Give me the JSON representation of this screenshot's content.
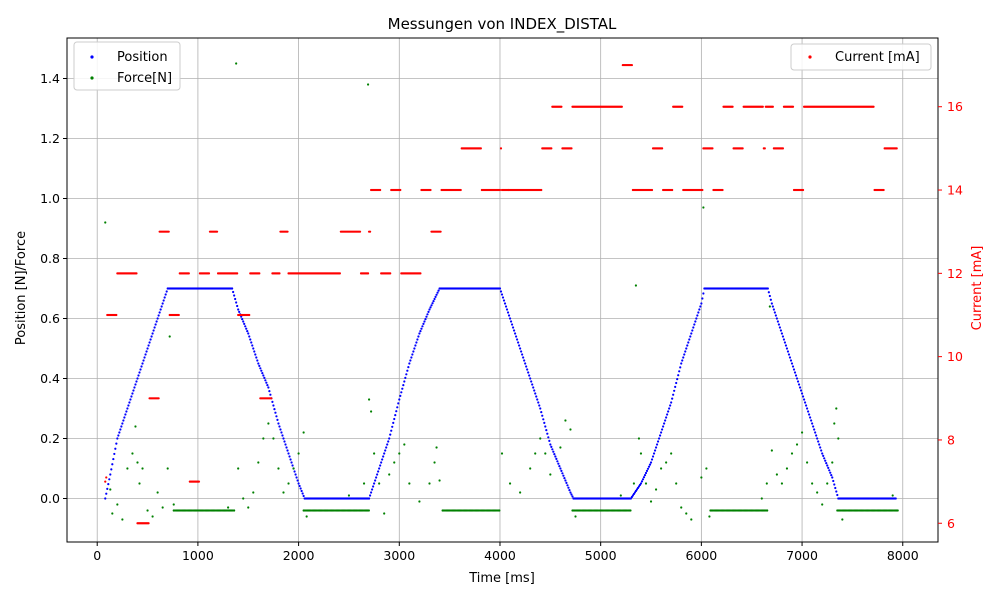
{
  "chart_data": {
    "type": "scatter",
    "title": "Messungen von INDEX_DISTAL",
    "xlabel": "Time [ms]",
    "ylabel": "Position [N]/Force",
    "ylabel_right": "Current [mA]",
    "xlim": [
      -300,
      8350
    ],
    "ylim": [
      -0.145,
      1.535
    ],
    "ylim_right": [
      5.55,
      17.65
    ],
    "xticks": [
      0,
      1000,
      2000,
      3000,
      4000,
      5000,
      6000,
      7000,
      8000
    ],
    "xtick_labels": [
      "0",
      "1000",
      "2000",
      "3000",
      "4000",
      "5000",
      "6000",
      "7000",
      "8000"
    ],
    "yticks": [
      0.0,
      0.2,
      0.4,
      0.6,
      0.8,
      1.0,
      1.2,
      1.4
    ],
    "ytick_labels": [
      "0.0",
      "0.2",
      "0.4",
      "0.6",
      "0.8",
      "1.0",
      "1.2",
      "1.4"
    ],
    "yticks_right": [
      6,
      8,
      10,
      12,
      14,
      16
    ],
    "ytick_labels_right": [
      "6",
      "8",
      "10",
      "12",
      "14",
      "16"
    ],
    "grid": true,
    "legend_left_placement": "upper-left",
    "legend_right_placement": "upper-right",
    "series": [
      {
        "name": "Position",
        "color": "#0000ff",
        "axis": "left",
        "points": [
          [
            80,
            0
          ],
          [
            130,
            0.08
          ],
          [
            200,
            0.2
          ],
          [
            300,
            0.3
          ],
          [
            400,
            0.4
          ],
          [
            500,
            0.5
          ],
          [
            600,
            0.6
          ],
          [
            700,
            0.7
          ],
          [
            1000,
            0.7
          ],
          [
            1340,
            0.7
          ],
          [
            1400,
            0.63
          ],
          [
            1500,
            0.55
          ],
          [
            1600,
            0.45
          ],
          [
            1700,
            0.37
          ],
          [
            1800,
            0.25
          ],
          [
            1900,
            0.15
          ],
          [
            2000,
            0.05
          ],
          [
            2060,
            0
          ],
          [
            2700,
            0
          ],
          [
            2800,
            0.1
          ],
          [
            2900,
            0.2
          ],
          [
            3000,
            0.33
          ],
          [
            3100,
            0.45
          ],
          [
            3200,
            0.55
          ],
          [
            3300,
            0.63
          ],
          [
            3400,
            0.7
          ],
          [
            4000,
            0.7
          ],
          [
            4100,
            0.6
          ],
          [
            4200,
            0.5
          ],
          [
            4300,
            0.4
          ],
          [
            4400,
            0.3
          ],
          [
            4500,
            0.18
          ],
          [
            4600,
            0.1
          ],
          [
            4700,
            0.02
          ],
          [
            4730,
            0
          ],
          [
            5300,
            0
          ],
          [
            5400,
            0.05
          ],
          [
            5500,
            0.12
          ],
          [
            5600,
            0.22
          ],
          [
            5700,
            0.32
          ],
          [
            5800,
            0.45
          ],
          [
            5900,
            0.55
          ],
          [
            6000,
            0.65
          ],
          [
            6030,
            0.7
          ],
          [
            6660,
            0.7
          ],
          [
            6700,
            0.65
          ],
          [
            6800,
            0.55
          ],
          [
            6900,
            0.45
          ],
          [
            7000,
            0.35
          ],
          [
            7100,
            0.25
          ],
          [
            7200,
            0.15
          ],
          [
            7300,
            0.07
          ],
          [
            7360,
            0
          ],
          [
            7930,
            0
          ]
        ]
      },
      {
        "name": "Force[N]",
        "color": "#008000",
        "axis": "left",
        "baseline_segments": [
          [
            760,
            1360,
            -0.04
          ],
          [
            2050,
            2700,
            -0.04
          ],
          [
            3430,
            4000,
            -0.04
          ],
          [
            4720,
            5300,
            -0.04
          ],
          [
            6090,
            6660,
            -0.04
          ],
          [
            7350,
            7950,
            -0.04
          ]
        ],
        "points": [
          [
            80,
            0.92
          ],
          [
            130,
            0.03
          ],
          [
            150,
            -0.05
          ],
          [
            200,
            -0.02
          ],
          [
            250,
            -0.07
          ],
          [
            300,
            0.1
          ],
          [
            350,
            0.15
          ],
          [
            380,
            0.24
          ],
          [
            400,
            0.12
          ],
          [
            420,
            0.05
          ],
          [
            450,
            0.1
          ],
          [
            500,
            -0.04
          ],
          [
            550,
            -0.06
          ],
          [
            600,
            0.02
          ],
          [
            650,
            -0.03
          ],
          [
            700,
            0.1
          ],
          [
            720,
            0.54
          ],
          [
            760,
            -0.02
          ],
          [
            1300,
            -0.03
          ],
          [
            1380,
            1.45
          ],
          [
            1400,
            0.1
          ],
          [
            1450,
            0.0
          ],
          [
            1500,
            -0.03
          ],
          [
            1550,
            0.02
          ],
          [
            1600,
            0.12
          ],
          [
            1650,
            0.2
          ],
          [
            1700,
            0.25
          ],
          [
            1750,
            0.2
          ],
          [
            1800,
            0.1
          ],
          [
            1850,
            0.02
          ],
          [
            1900,
            0.05
          ],
          [
            1950,
            0.1
          ],
          [
            2000,
            0.15
          ],
          [
            2050,
            0.22
          ],
          [
            2080,
            -0.06
          ],
          [
            2500,
            0.01
          ],
          [
            2650,
            0.05
          ],
          [
            2690,
            1.38
          ],
          [
            2700,
            0.33
          ],
          [
            2720,
            0.29
          ],
          [
            2750,
            0.15
          ],
          [
            2800,
            0.05
          ],
          [
            2850,
            -0.05
          ],
          [
            2900,
            0.08
          ],
          [
            2950,
            0.12
          ],
          [
            3000,
            0.15
          ],
          [
            3050,
            0.18
          ],
          [
            3100,
            0.05
          ],
          [
            3200,
            -0.01
          ],
          [
            3300,
            0.05
          ],
          [
            3350,
            0.12
          ],
          [
            3370,
            0.17
          ],
          [
            3400,
            0.06
          ],
          [
            4020,
            0.15
          ],
          [
            4100,
            0.05
          ],
          [
            4200,
            0.02
          ],
          [
            4300,
            0.1
          ],
          [
            4350,
            0.15
          ],
          [
            4400,
            0.2
          ],
          [
            4450,
            0.15
          ],
          [
            4500,
            0.08
          ],
          [
            4600,
            0.17
          ],
          [
            4650,
            0.26
          ],
          [
            4700,
            0.23
          ],
          [
            4750,
            -0.06
          ],
          [
            5200,
            0.01
          ],
          [
            5330,
            0.05
          ],
          [
            5350,
            0.71
          ],
          [
            5380,
            0.2
          ],
          [
            5400,
            0.15
          ],
          [
            5450,
            0.05
          ],
          [
            5500,
            -0.01
          ],
          [
            5550,
            0.03
          ],
          [
            5600,
            0.1
          ],
          [
            5650,
            0.12
          ],
          [
            5700,
            0.15
          ],
          [
            5750,
            0.05
          ],
          [
            5800,
            -0.03
          ],
          [
            5850,
            -0.05
          ],
          [
            5900,
            -0.07
          ],
          [
            6000,
            0.07
          ],
          [
            6020,
            0.97
          ],
          [
            6050,
            0.1
          ],
          [
            6080,
            -0.06
          ],
          [
            6600,
            0.0
          ],
          [
            6650,
            0.05
          ],
          [
            6680,
            0.64
          ],
          [
            6700,
            0.16
          ],
          [
            6750,
            0.08
          ],
          [
            6800,
            0.05
          ],
          [
            6850,
            0.1
          ],
          [
            6900,
            0.15
          ],
          [
            6950,
            0.18
          ],
          [
            7000,
            0.22
          ],
          [
            7050,
            0.12
          ],
          [
            7100,
            0.05
          ],
          [
            7150,
            0.02
          ],
          [
            7200,
            -0.02
          ],
          [
            7250,
            0.05
          ],
          [
            7300,
            0.12
          ],
          [
            7320,
            0.25
          ],
          [
            7340,
            0.3
          ],
          [
            7360,
            0.2
          ],
          [
            7400,
            -0.07
          ],
          [
            7900,
            0.01
          ]
        ]
      },
      {
        "name": "Current [mA]",
        "color": "#ff0000",
        "axis": "right",
        "points": [
          [
            80,
            7
          ],
          [
            90,
            7.1
          ],
          [
            100,
            11
          ],
          [
            130,
            11
          ],
          [
            160,
            11
          ],
          [
            190,
            11
          ],
          [
            200,
            12
          ],
          [
            380,
            12
          ],
          [
            400,
            6
          ],
          [
            500,
            6
          ],
          [
            520,
            9
          ],
          [
            600,
            9
          ],
          [
            620,
            13
          ],
          [
            700,
            13
          ],
          [
            720,
            11
          ],
          [
            800,
            11
          ],
          [
            820,
            12
          ],
          [
            900,
            12
          ],
          [
            920,
            7
          ],
          [
            1000,
            7
          ],
          [
            1020,
            12
          ],
          [
            1100,
            12
          ],
          [
            1120,
            13
          ],
          [
            1180,
            13
          ],
          [
            1200,
            12
          ],
          [
            1380,
            12
          ],
          [
            1400,
            11
          ],
          [
            1500,
            11
          ],
          [
            1520,
            12
          ],
          [
            1600,
            12
          ],
          [
            1620,
            9
          ],
          [
            1720,
            9
          ],
          [
            1740,
            12
          ],
          [
            1800,
            12
          ],
          [
            1820,
            13
          ],
          [
            1880,
            13
          ],
          [
            1900,
            12
          ],
          [
            2400,
            12
          ],
          [
            2420,
            13
          ],
          [
            2600,
            13
          ],
          [
            2620,
            12
          ],
          [
            2680,
            12
          ],
          [
            2700,
            13
          ],
          [
            2720,
            14
          ],
          [
            2800,
            14
          ],
          [
            2820,
            12
          ],
          [
            2900,
            12
          ],
          [
            2920,
            14
          ],
          [
            3000,
            14
          ],
          [
            3020,
            12
          ],
          [
            3200,
            12
          ],
          [
            3220,
            14
          ],
          [
            3300,
            14
          ],
          [
            3320,
            13
          ],
          [
            3400,
            13
          ],
          [
            3420,
            14
          ],
          [
            3600,
            14
          ],
          [
            3620,
            15
          ],
          [
            3800,
            15
          ],
          [
            3820,
            14
          ],
          [
            4000,
            14
          ],
          [
            4010,
            15
          ],
          [
            4020,
            14
          ],
          [
            4400,
            14
          ],
          [
            4420,
            15
          ],
          [
            4500,
            15
          ],
          [
            4520,
            16
          ],
          [
            4600,
            16
          ],
          [
            4620,
            15
          ],
          [
            4700,
            15
          ],
          [
            4720,
            16
          ],
          [
            5200,
            16
          ],
          [
            5220,
            17
          ],
          [
            5300,
            17
          ],
          [
            5320,
            14
          ],
          [
            5500,
            14
          ],
          [
            5520,
            15
          ],
          [
            5600,
            15
          ],
          [
            5620,
            14
          ],
          [
            5700,
            14
          ],
          [
            5720,
            16
          ],
          [
            5800,
            16
          ],
          [
            5820,
            14
          ],
          [
            6000,
            14
          ],
          [
            6020,
            15
          ],
          [
            6100,
            15
          ],
          [
            6120,
            14
          ],
          [
            6200,
            14
          ],
          [
            6220,
            16
          ],
          [
            6300,
            16
          ],
          [
            6320,
            15
          ],
          [
            6400,
            15
          ],
          [
            6420,
            16
          ],
          [
            6600,
            16
          ],
          [
            6620,
            15
          ],
          [
            6640,
            16
          ],
          [
            6700,
            16
          ],
          [
            6720,
            15
          ],
          [
            6800,
            15
          ],
          [
            6820,
            16
          ],
          [
            6900,
            16
          ],
          [
            6920,
            14
          ],
          [
            7000,
            14
          ],
          [
            7020,
            16
          ],
          [
            7700,
            16
          ],
          [
            7720,
            14
          ],
          [
            7800,
            14
          ],
          [
            7820,
            15
          ],
          [
            7940,
            15
          ]
        ]
      }
    ]
  }
}
